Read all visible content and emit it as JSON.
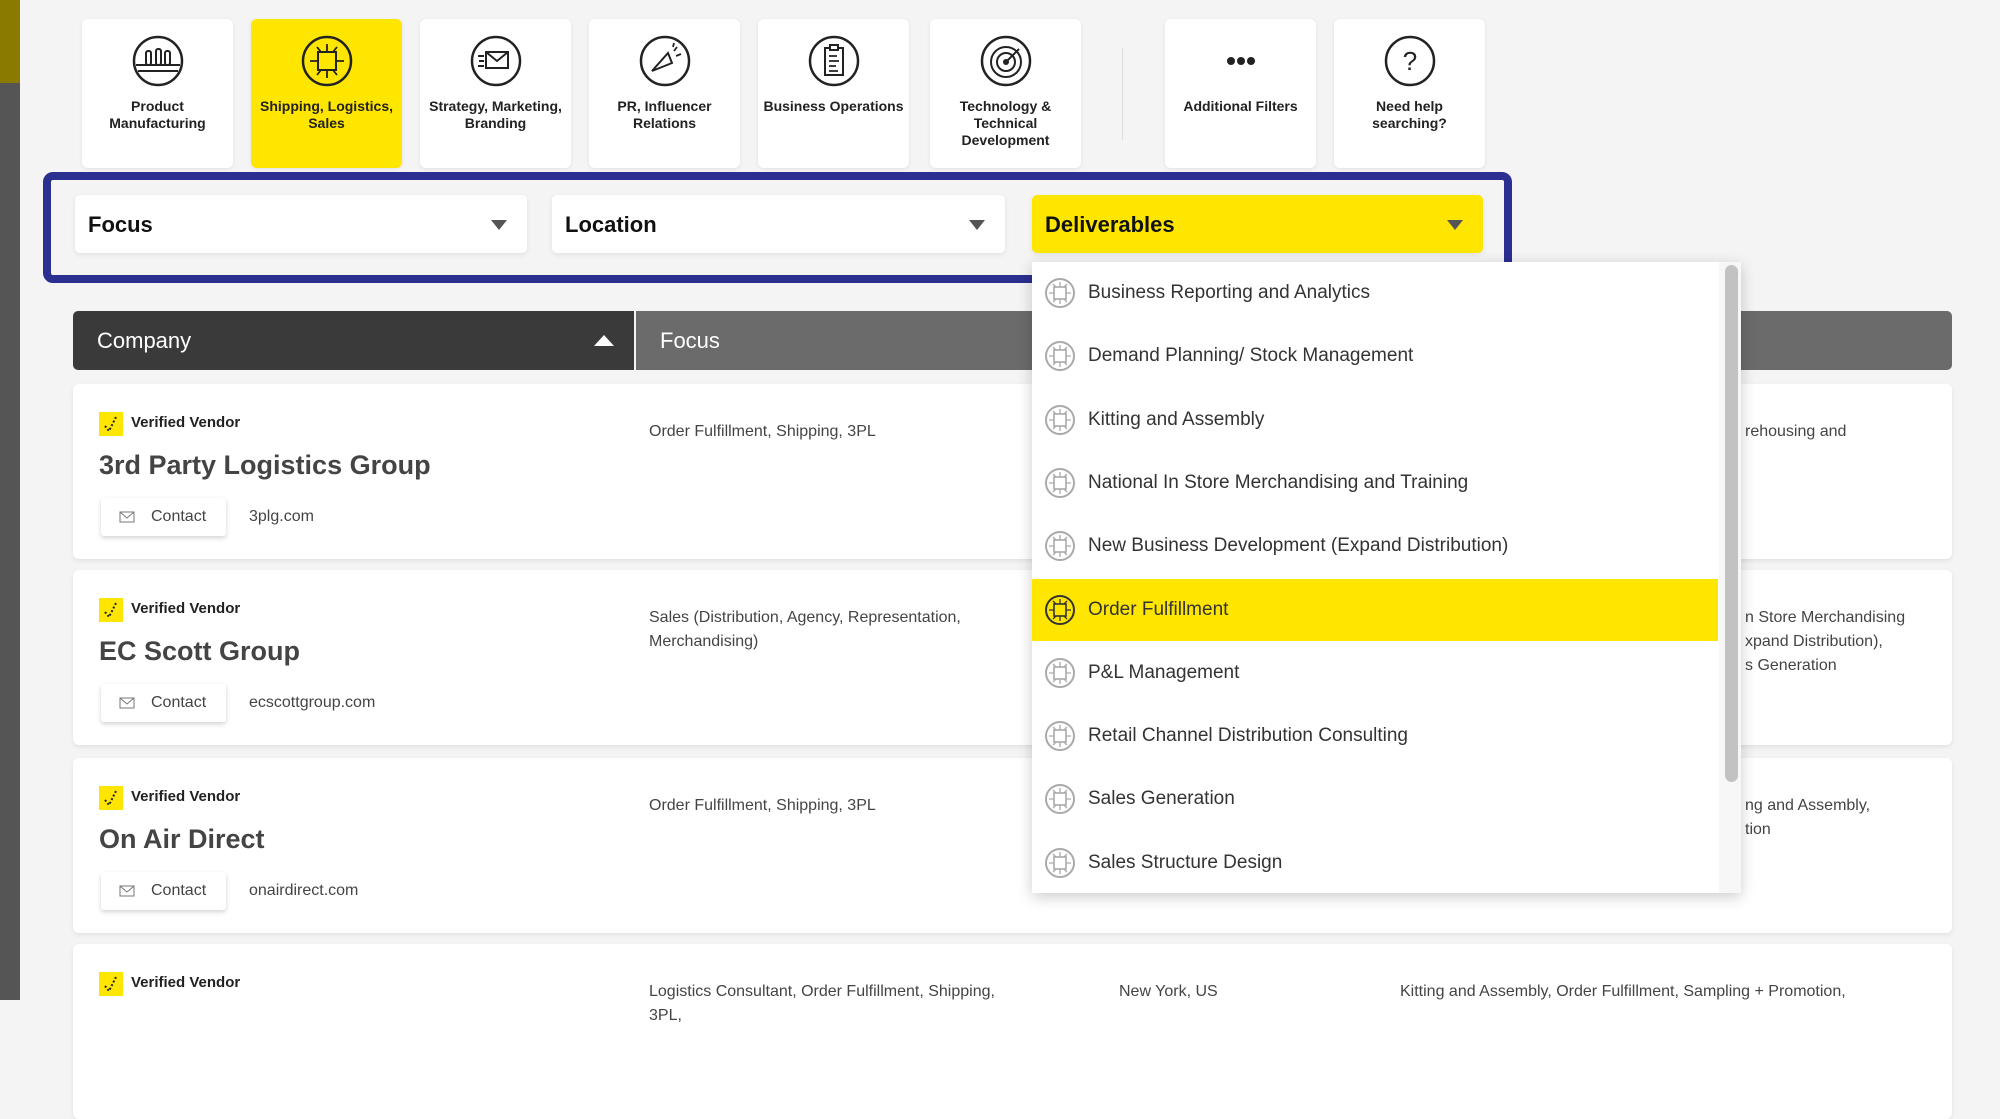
{
  "categories": [
    {
      "label": "Product Manufacturing",
      "icon": "factory-bottles-icon",
      "active": false
    },
    {
      "label": "Shipping, Logistics, Sales",
      "icon": "network-chip-icon",
      "active": true
    },
    {
      "label": "Strategy, Marketing, Branding",
      "icon": "envelope-icon",
      "active": false
    },
    {
      "label": "PR, Influencer Relations",
      "icon": "megaphone-icon",
      "active": false
    },
    {
      "label": "Business Operations",
      "icon": "clipboard-icon",
      "active": false
    },
    {
      "label": "Technology & Technical Development",
      "icon": "target-icon",
      "active": false
    }
  ],
  "extra_buttons": [
    {
      "label": "Additional Filters",
      "icon": "more-dots-icon"
    },
    {
      "label": "Need help searching?",
      "icon": "question-icon"
    }
  ],
  "filters": {
    "focus": "Focus",
    "location": "Location",
    "deliverables": "Deliverables"
  },
  "table": {
    "headers": {
      "company": "Company",
      "focus": "Focus"
    }
  },
  "verified_label": "Verified Vendor",
  "contact_label": "Contact",
  "rows": [
    {
      "name": "3rd Party Logistics Group",
      "site": "3plg.com",
      "focus": "Order Fulfillment, Shipping, 3PL",
      "location": "",
      "deliverables": "rehousing and"
    },
    {
      "name": "EC Scott Group",
      "site": "ecscottgroup.com",
      "focus": "Sales (Distribution, Agency, Representation, Merchandising)",
      "location": "",
      "deliverables": "n Store Merchandising\nxpand Distribution),\ns Generation"
    },
    {
      "name": "On Air Direct",
      "site": "onairdirect.com",
      "focus": "Order Fulfillment, Shipping, 3PL",
      "location": "",
      "deliverables": "ng and Assembly,\ntion"
    },
    {
      "name": "",
      "site": "",
      "focus": "Logistics Consultant, Order Fulfillment, Shipping, 3PL,",
      "location": "New York, US",
      "deliverables": "Kitting and Assembly, Order Fulfillment, Sampling + Promotion,"
    }
  ],
  "deliverables_menu": {
    "selected": "Order Fulfillment",
    "items": [
      "Business Reporting and Analytics",
      "Demand Planning/ Stock Management",
      "Kitting and Assembly",
      "National In Store Merchandising and Training",
      "New Business Development (Expand Distribution)",
      "Order Fulfillment",
      "P&L Management",
      "Retail Channel Distribution Consulting",
      "Sales Generation",
      "Sales Structure Design"
    ]
  },
  "colors": {
    "accent": "#ffe600",
    "highlight_border": "#2b2f8f",
    "header_dark": "#3a3a3a",
    "header_gray": "#6b6b6b"
  }
}
